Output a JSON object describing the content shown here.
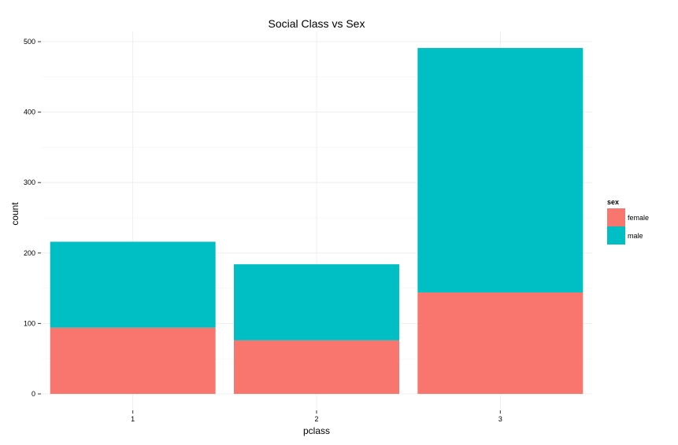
{
  "chart_data": {
    "type": "bar",
    "stacked": true,
    "title": "Social Class vs Sex",
    "xlabel": "pclass",
    "ylabel": "count",
    "categories": [
      "1",
      "2",
      "3"
    ],
    "series": [
      {
        "name": "female",
        "values": [
          94,
          76,
          144
        ],
        "color": "#F8766D"
      },
      {
        "name": "male",
        "values": [
          122,
          108,
          347
        ],
        "color": "#00BFC4"
      }
    ],
    "ylim": [
      0,
      515
    ],
    "yticks": [
      0,
      100,
      200,
      300,
      400,
      500
    ],
    "grid": true,
    "legend": {
      "title": "sex",
      "position": "right"
    }
  }
}
